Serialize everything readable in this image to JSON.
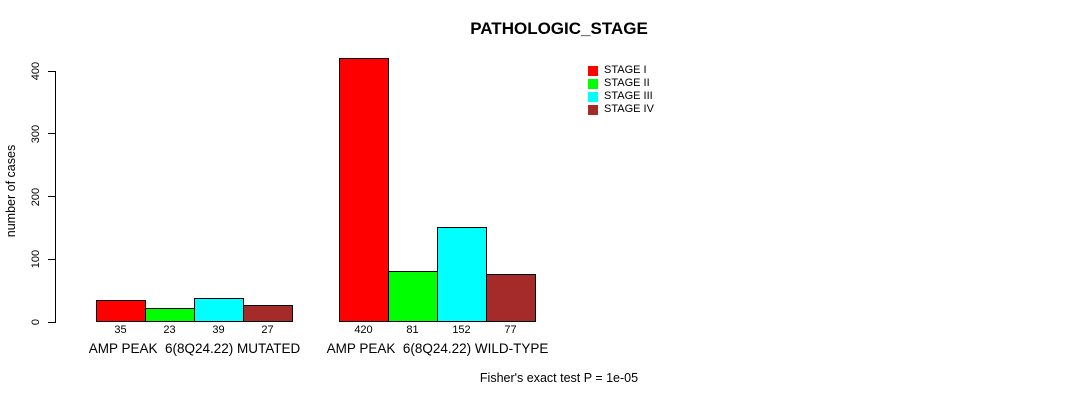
{
  "chart_data": {
    "type": "bar",
    "title": "PATHOLOGIC_STAGE",
    "ylabel": "number of cases",
    "xlabel": "",
    "ylim": [
      0,
      400
    ],
    "yticks": [
      0,
      100,
      200,
      300,
      400
    ],
    "grid": false,
    "categories": [
      "AMP PEAK  6(8Q24.22) MUTATED",
      "AMP PEAK  6(8Q24.22) WILD-TYPE"
    ],
    "series": [
      {
        "name": "STAGE I",
        "color": "#FF0000",
        "values": [
          35,
          420
        ]
      },
      {
        "name": "STAGE II",
        "color": "#00FF00",
        "values": [
          23,
          81
        ]
      },
      {
        "name": "STAGE III",
        "color": "#00FFFF",
        "values": [
          39,
          152
        ]
      },
      {
        "name": "STAGE IV",
        "color": "#A52A2A",
        "values": [
          27,
          77
        ]
      }
    ],
    "bar_value_labels": [
      [
        35,
        23,
        39,
        27
      ],
      [
        420,
        81,
        152,
        77
      ]
    ],
    "legend_position": "top-right",
    "annotation": "Fisher's exact test P = 1e-05",
    "bar_border_color": "#000000"
  }
}
